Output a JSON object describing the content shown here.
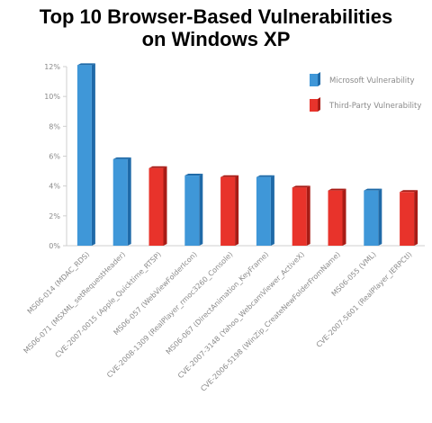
{
  "chart_data": {
    "type": "bar",
    "title_lines": [
      "Top 10 Browser-Based Vulnerabilities",
      "on Windows XP"
    ],
    "xlabel": "",
    "ylabel": "",
    "ylim": [
      0,
      12
    ],
    "yticks": [
      0,
      2,
      4,
      6,
      8,
      10,
      12
    ],
    "ytick_labels": [
      "0%",
      "2%",
      "4%",
      "6%",
      "8%",
      "10%",
      "12%"
    ],
    "grid": false,
    "legend_position": "top-right",
    "categories": [
      "MS06-014 (MDAC_RDS)",
      "MS06-071 (MSXML_setRequestHeader)",
      "CVE-2007-0015 (Apple_Quicktime_RTSP)",
      "MS06-057 (WebViewFolderIcon)",
      "CVE-2008-1309 (RealPlayer_rmoc3260_Console)",
      "MS06-067 (DirectAnimation_KeyFrame)",
      "CVE-2007-3148 (Yahoo_WebcamViewer_ActiveX)",
      "CVE-2006-5198 (WinZip_CreateNewFolderFromName)",
      "MS06-055 (VML)",
      "CVE-2007-5601 (RealPlayer_IERPCtl)"
    ],
    "values": [
      12.1,
      5.8,
      5.2,
      4.7,
      4.6,
      4.6,
      3.9,
      3.7,
      3.7,
      3.6
    ],
    "series_type": [
      "microsoft",
      "microsoft",
      "third",
      "microsoft",
      "third",
      "microsoft",
      "third",
      "third",
      "microsoft",
      "third"
    ],
    "legend": [
      {
        "key": "microsoft",
        "label": "Microsoft Vulnerability",
        "color": "#3f97d8",
        "shade": "#1f6aa8"
      },
      {
        "key": "third",
        "label": "Third-Party Vulnerability",
        "color": "#e8332b",
        "shade": "#a81c16"
      }
    ]
  }
}
